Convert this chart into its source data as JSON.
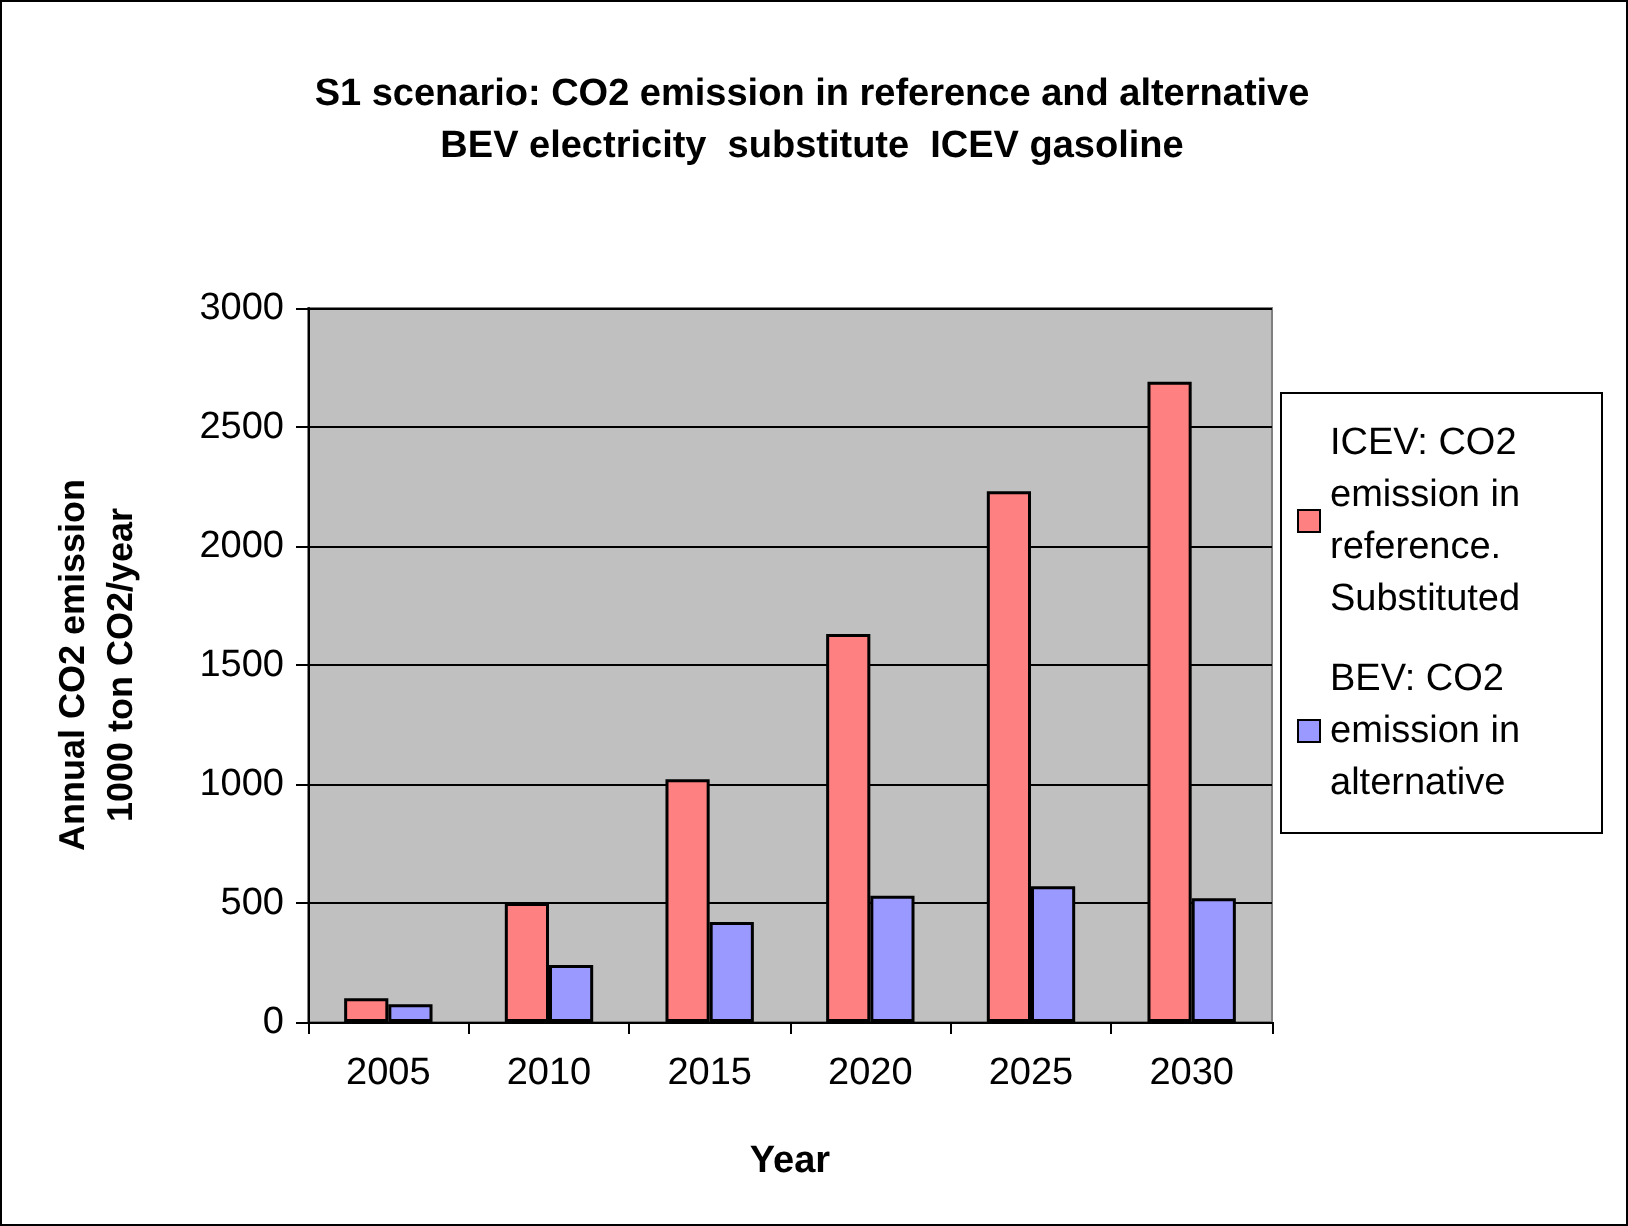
{
  "chart_data": {
    "type": "bar",
    "title": "S1 scenario: CO2 emission in reference and alternative\nBEV electricity  substitute  ICEV gasoline",
    "xlabel": "Year",
    "ylabel": "Annual CO2 emission\n1000 ton CO2/year",
    "categories": [
      "2005",
      "2010",
      "2015",
      "2020",
      "2025",
      "2030"
    ],
    "series": [
      {
        "name": "ICEV: CO2 emission in reference. Substituted",
        "color": "#ff8080",
        "values": [
          100,
          500,
          1020,
          1630,
          2230,
          2690
        ]
      },
      {
        "name": "BEV: CO2 emission in alternative",
        "color": "#9999ff",
        "values": [
          75,
          240,
          420,
          530,
          570,
          520
        ]
      }
    ],
    "ylim": [
      0,
      3000
    ],
    "yticks": [
      0,
      500,
      1000,
      1500,
      2000,
      2500,
      3000
    ],
    "grid": "y",
    "legend": "right"
  }
}
